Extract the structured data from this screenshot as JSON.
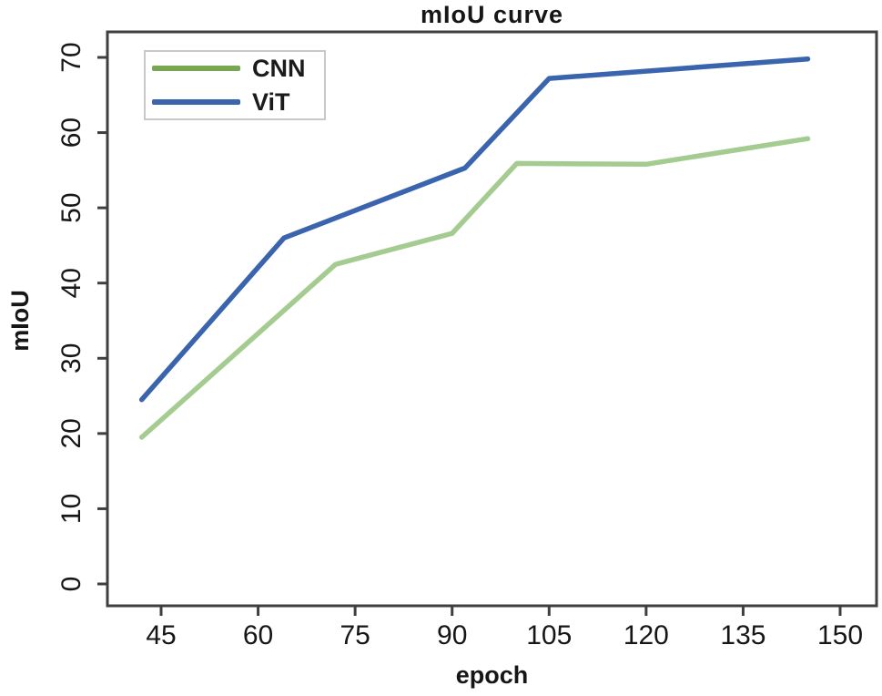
{
  "chart_data": {
    "type": "line",
    "title": "mIoU curve",
    "xlabel": "epoch",
    "ylabel": "mIoU",
    "x_ticks": [
      "45",
      "60",
      "75",
      "90",
      "105",
      "120",
      "135",
      "150"
    ],
    "y_ticks": [
      "0",
      "10",
      "20",
      "30",
      "40",
      "50",
      "60",
      "70"
    ],
    "xlim": [
      36.5,
      155.5
    ],
    "ylim": [
      -3,
      73.5
    ],
    "grid": false,
    "legend_position": "top-left",
    "axis_color": "#3f3f3f",
    "tick_label_color": "#161616",
    "series": [
      {
        "name": "CNN",
        "color": "#a5cc90",
        "legend_color": "#77a851",
        "points": [
          [
            42,
            19.5
          ],
          [
            72,
            42.5
          ],
          [
            90,
            46.6
          ],
          [
            100,
            55.9
          ],
          [
            120,
            55.8
          ],
          [
            145,
            59.2
          ]
        ]
      },
      {
        "name": "ViT",
        "color": "#3b64ae",
        "legend_color": "#3b64ae",
        "points": [
          [
            42,
            24.5
          ],
          [
            64,
            46.0
          ],
          [
            92,
            55.3
          ],
          [
            105,
            67.2
          ],
          [
            145,
            69.8
          ]
        ]
      }
    ]
  }
}
